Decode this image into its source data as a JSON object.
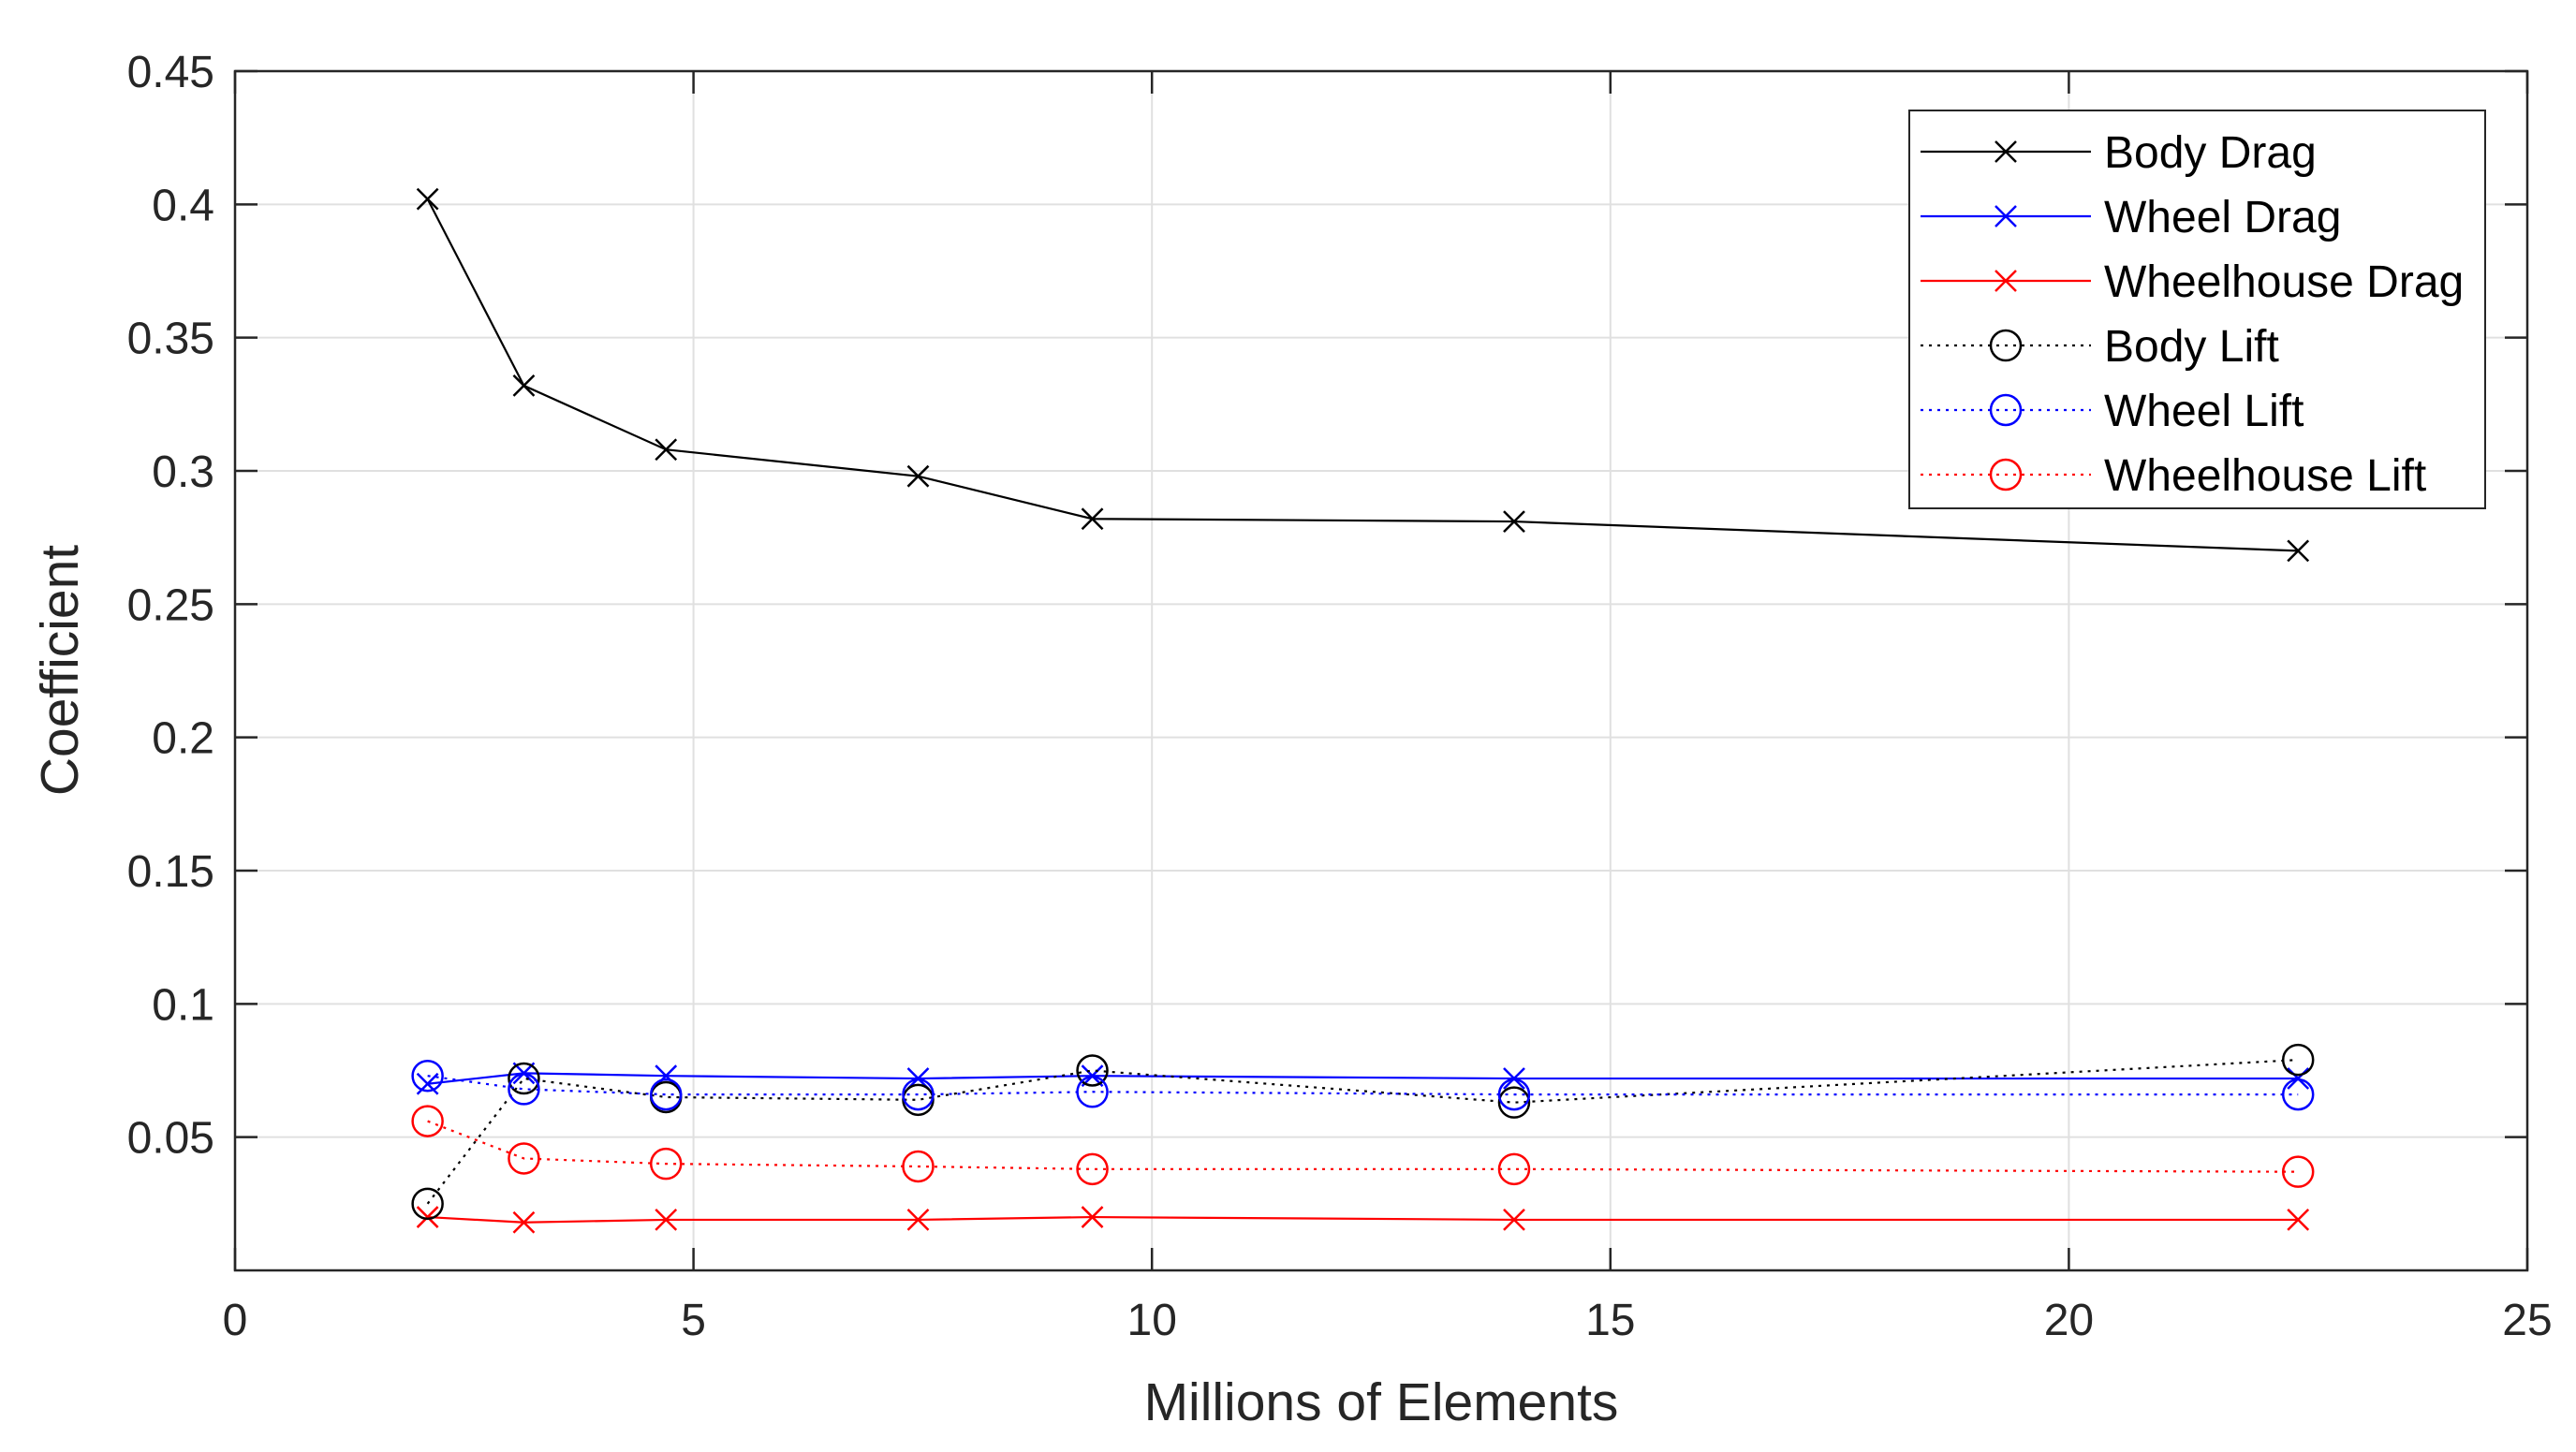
{
  "chart_data": {
    "type": "line",
    "title": "",
    "xlabel": "Millions of Elements",
    "ylabel": "Coefficient",
    "xlim": [
      0,
      25
    ],
    "ylim": [
      0,
      0.45
    ],
    "x_ticks": [
      0,
      5,
      10,
      15,
      20,
      25
    ],
    "x_tick_labels": [
      "0",
      "5",
      "10",
      "15",
      "20",
      "25"
    ],
    "y_ticks": [
      0.05,
      0.1,
      0.15,
      0.2,
      0.25,
      0.3,
      0.35,
      0.4,
      0.45
    ],
    "y_tick_labels": [
      "0.05",
      "0.1",
      "0.15",
      "0.2",
      "0.25",
      "0.3",
      "0.35",
      "0.4",
      "0.45"
    ],
    "grid": true,
    "legend_position": "top-right",
    "x": [
      2.1,
      3.15,
      4.7,
      7.45,
      9.35,
      13.95,
      22.5
    ],
    "series": [
      {
        "name": "Body Drag",
        "color": "#000000",
        "line": "solid",
        "marker": "x",
        "values": [
          0.402,
          0.332,
          0.308,
          0.298,
          0.282,
          0.281,
          0.27
        ]
      },
      {
        "name": "Wheel Drag",
        "color": "#0000ff",
        "line": "solid",
        "marker": "x",
        "values": [
          0.07,
          0.074,
          0.073,
          0.072,
          0.073,
          0.072,
          0.072
        ]
      },
      {
        "name": "Wheelhouse Drag",
        "color": "#ff0000",
        "line": "solid",
        "marker": "x",
        "values": [
          0.02,
          0.018,
          0.019,
          0.019,
          0.02,
          0.019,
          0.019
        ]
      },
      {
        "name": "Body Lift",
        "color": "#000000",
        "line": "dotted",
        "marker": "o",
        "values": [
          0.025,
          0.072,
          0.065,
          0.064,
          0.075,
          0.063,
          0.079
        ]
      },
      {
        "name": "Wheel Lift",
        "color": "#0000ff",
        "line": "dotted",
        "marker": "o",
        "values": [
          0.073,
          0.068,
          0.066,
          0.066,
          0.067,
          0.066,
          0.066
        ]
      },
      {
        "name": "Wheelhouse Lift",
        "color": "#ff0000",
        "line": "dotted",
        "marker": "o",
        "values": [
          0.056,
          0.042,
          0.04,
          0.039,
          0.038,
          0.038,
          0.037
        ]
      }
    ]
  }
}
